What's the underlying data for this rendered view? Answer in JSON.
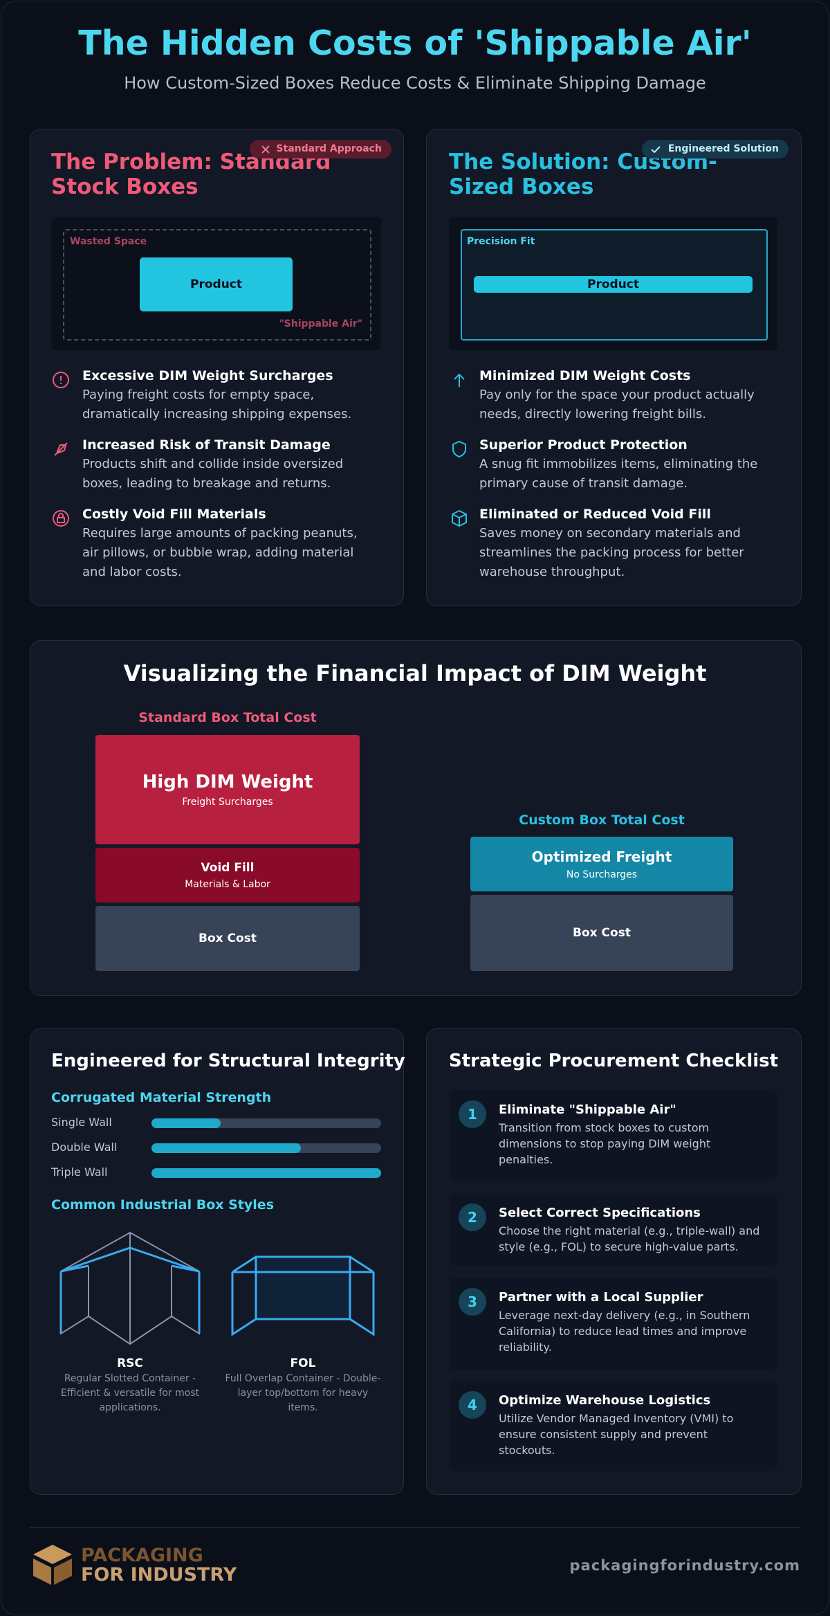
{
  "header": {
    "title": "The Hidden Costs of 'Shippable Air'",
    "subtitle": "How Custom-Sized Boxes Reduce Costs & Eliminate Shipping Damage"
  },
  "problem": {
    "badge": "Standard Approach",
    "title": "The Problem: Standard Stock Boxes",
    "diagram": {
      "wasted": "Wasted Space",
      "product": "Product",
      "air": "\"Shippable Air\""
    },
    "items": [
      {
        "title": "Excessive DIM Weight Surcharges",
        "text": "Paying freight costs for empty space, dramatically increasing shipping expenses."
      },
      {
        "title": "Increased Risk of Transit Damage",
        "text": "Products shift and collide inside oversized boxes, leading to breakage and returns."
      },
      {
        "title": "Costly Void Fill Materials",
        "text": "Requires large amounts of packing peanuts, air pillows, or bubble wrap, adding material and labor costs."
      }
    ]
  },
  "solution": {
    "badge": "Engineered Solution",
    "title": "The Solution: Custom-Sized Boxes",
    "diagram": {
      "label": "Precision Fit",
      "product": "Product"
    },
    "items": [
      {
        "title": "Minimized DIM Weight Costs",
        "text": "Pay only for the space your product actually needs, directly lowering freight bills."
      },
      {
        "title": "Superior Product Protection",
        "text": "A snug fit immobilizes items, eliminating the primary cause of transit damage."
      },
      {
        "title": "Eliminated or Reduced Void Fill",
        "text": "Saves money on secondary materials and streamlines the packing process for better warehouse throughput."
      }
    ]
  },
  "impact": {
    "title": "Visualizing the Financial Impact of DIM Weight",
    "standard": {
      "label": "Standard Box Total Cost",
      "segments": [
        {
          "title": "High DIM Weight",
          "sub": "Freight Surcharges"
        },
        {
          "title": "Void Fill",
          "sub": "Materials & Labor"
        },
        {
          "title": "Box Cost"
        }
      ]
    },
    "custom": {
      "label": "Custom Box Total Cost",
      "segments": [
        {
          "title": "Optimized Freight",
          "sub": "No Surcharges"
        },
        {
          "title": "Box Cost"
        }
      ]
    }
  },
  "structure": {
    "title": "Engineered for Structural Integrity",
    "strength_title": "Corrugated Material Strength",
    "walls": [
      {
        "name": "Single Wall",
        "value": 30
      },
      {
        "name": "Double Wall",
        "value": 65
      },
      {
        "name": "Triple Wall",
        "value": 100
      }
    ],
    "styles_title": "Common Industrial Box Styles",
    "styles": [
      {
        "name": "RSC",
        "desc": "Regular Slotted Container - Efficient & versatile for most applications."
      },
      {
        "name": "FOL",
        "desc": "Full Overlap Container - Double-layer top/bottom for heavy items."
      }
    ]
  },
  "checklist": {
    "title": "Strategic Procurement Checklist",
    "items": [
      {
        "number": 1,
        "title": "Eliminate \"Shippable Air\"",
        "text": "Transition from stock boxes to custom dimensions to stop paying DIM weight penalties."
      },
      {
        "number": 2,
        "title": "Select Correct Specifications",
        "text": "Choose the right material (e.g., triple-wall) and style (e.g., FOL) to secure high-value parts."
      },
      {
        "number": 3,
        "title": "Partner with a Local Supplier",
        "text": "Leverage next-day delivery (e.g., in Southern California) to reduce lead times and improve reliability."
      },
      {
        "number": 4,
        "title": "Optimize Warehouse Logistics",
        "text": "Utilize Vendor Managed Inventory (VMI) to ensure consistent supply and prevent stockouts."
      }
    ]
  },
  "footer": {
    "logo_line1": "PACKAGING",
    "logo_line2": "FOR INDUSTRY",
    "url": "packagingforindustry.com"
  }
}
